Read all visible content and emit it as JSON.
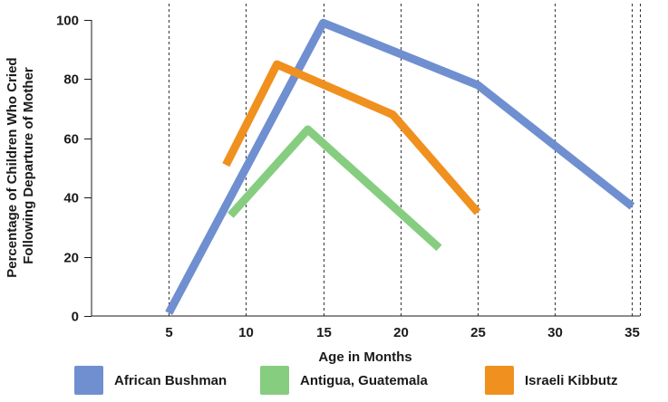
{
  "chart_data": {
    "type": "line",
    "xlabel": "Age in Months",
    "ylabel_lines": [
      "Percentage of Children Who Cried",
      "Following Departure of Mother"
    ],
    "xlim": [
      0,
      35.5
    ],
    "ylim": [
      0,
      100
    ],
    "x_ticks": [
      5,
      10,
      15,
      20,
      25,
      30,
      35
    ],
    "y_ticks": [
      0,
      20,
      40,
      60,
      80,
      100
    ],
    "grid": "vertical dashed at x ticks",
    "legend_position": "bottom",
    "series": [
      {
        "name": "African Bushman",
        "color": "#6f8fd0",
        "points": [
          [
            5,
            1
          ],
          [
            15,
            99
          ],
          [
            25,
            78
          ],
          [
            35,
            37
          ]
        ]
      },
      {
        "name": "Antigua, Guatemala",
        "color": "#86cd80",
        "points": [
          [
            9,
            34
          ],
          [
            14,
            63
          ],
          [
            22.5,
            23
          ]
        ]
      },
      {
        "name": "Israeli Kibbutz",
        "color": "#f0901e",
        "points": [
          [
            8.7,
            51
          ],
          [
            12,
            85
          ],
          [
            19.5,
            68
          ],
          [
            25,
            35
          ]
        ]
      }
    ]
  }
}
